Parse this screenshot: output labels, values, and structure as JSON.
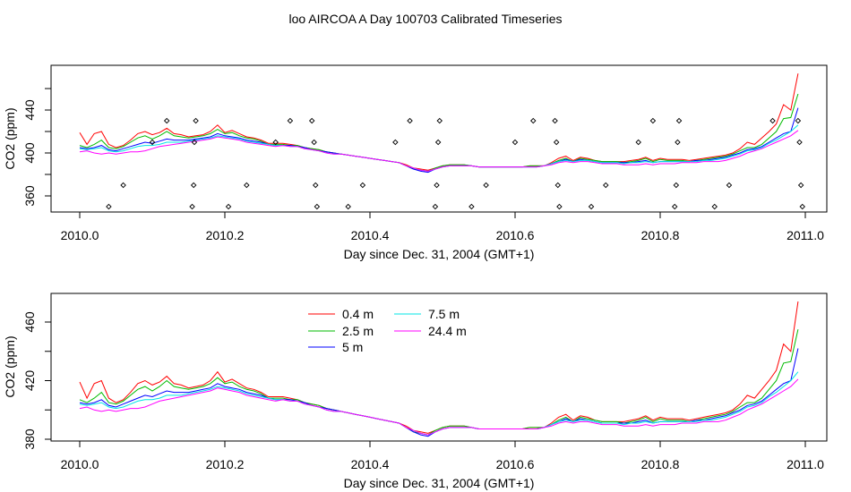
{
  "chart_data": [
    {
      "type": "line",
      "title": "loo AIRCOA A  Day 100703  Calibrated Timeseries",
      "xlabel": "Day since Dec. 31, 2004 (GMT+1)",
      "ylabel": "CO2 (ppm)",
      "xlim": [
        2010.0,
        2011.0
      ],
      "ylim": [
        345,
        480
      ],
      "xticks": [
        "2010.0",
        "2010.2",
        "2010.4",
        "2010.6",
        "2010.8",
        "2011.0"
      ],
      "yticks": [
        "360",
        "400",
        "440"
      ],
      "grid": false,
      "legend": "none",
      "x": [
        2010.0,
        2010.01,
        2010.02,
        2010.03,
        2010.04,
        2010.05,
        2010.06,
        2010.07,
        2010.08,
        2010.09,
        2010.1,
        2010.11,
        2010.12,
        2010.13,
        2010.14,
        2010.15,
        2010.16,
        2010.17,
        2010.18,
        2010.19,
        2010.2,
        2010.21,
        2010.22,
        2010.23,
        2010.24,
        2010.25,
        2010.26,
        2010.27,
        2010.28,
        2010.29,
        2010.3,
        2010.31,
        2010.32,
        2010.33,
        2010.34,
        2010.35,
        2010.36,
        2010.37,
        2010.38,
        2010.39,
        2010.4,
        2010.41,
        2010.42,
        2010.43,
        2010.44,
        2010.45,
        2010.46,
        2010.47,
        2010.48,
        2010.49,
        2010.5,
        2010.51,
        2010.52,
        2010.53,
        2010.54,
        2010.55,
        2010.56,
        2010.57,
        2010.58,
        2010.59,
        2010.6,
        2010.61,
        2010.62,
        2010.63,
        2010.64,
        2010.65,
        2010.66,
        2010.67,
        2010.68,
        2010.69,
        2010.7,
        2010.71,
        2010.72,
        2010.73,
        2010.74,
        2010.75,
        2010.76,
        2010.77,
        2010.78,
        2010.79,
        2010.8,
        2010.81,
        2010.82,
        2010.83,
        2010.84,
        2010.85,
        2010.86,
        2010.87,
        2010.88,
        2010.89,
        2010.9,
        2010.91,
        2010.92,
        2010.93,
        2010.94,
        2010.95,
        2010.96,
        2010.97,
        2010.98,
        2010.99
      ],
      "series": [
        {
          "color": "#ff0000",
          "values": [
            419,
            408,
            418,
            420,
            408,
            405,
            407,
            412,
            418,
            420,
            417,
            419,
            423,
            418,
            417,
            415,
            416,
            417,
            420,
            426,
            419,
            421,
            418,
            415,
            414,
            412,
            409,
            409,
            409,
            408,
            407,
            405,
            404,
            403,
            401,
            400,
            399,
            398,
            397,
            396,
            395,
            394,
            393,
            392,
            391,
            389,
            386,
            385,
            384,
            386,
            388,
            389,
            389,
            389,
            388,
            387,
            387,
            387,
            387,
            387,
            387,
            387,
            388,
            388,
            388,
            391,
            395,
            397,
            393,
            396,
            395,
            393,
            392,
            392,
            392,
            392,
            393,
            394,
            396,
            393,
            395,
            394,
            394,
            394,
            393,
            394,
            395,
            396,
            397,
            398,
            400,
            404,
            410,
            408,
            414,
            420,
            427,
            445,
            440,
            474
          ]
        },
        {
          "color": "#00bb00",
          "values": [
            407,
            405,
            408,
            412,
            405,
            404,
            406,
            410,
            414,
            416,
            413,
            416,
            420,
            416,
            415,
            414,
            415,
            416,
            418,
            422,
            418,
            419,
            416,
            414,
            413,
            411,
            408,
            408,
            408,
            407,
            407,
            405,
            404,
            403,
            401,
            400,
            399,
            398,
            397,
            396,
            395,
            394,
            393,
            392,
            391,
            388,
            385,
            384,
            383,
            386,
            388,
            389,
            389,
            389,
            388,
            387,
            387,
            387,
            387,
            387,
            387,
            387,
            388,
            388,
            388,
            390,
            393,
            395,
            392,
            395,
            394,
            393,
            392,
            392,
            392,
            391,
            392,
            393,
            395,
            392,
            394,
            393,
            393,
            393,
            392,
            393,
            394,
            395,
            396,
            397,
            399,
            402,
            405,
            405,
            408,
            414,
            420,
            432,
            433,
            455
          ]
        },
        {
          "color": "#0000ff",
          "values": [
            405,
            404,
            405,
            407,
            403,
            402,
            404,
            406,
            408,
            410,
            409,
            411,
            413,
            412,
            412,
            412,
            413,
            414,
            415,
            418,
            416,
            415,
            414,
            412,
            411,
            410,
            408,
            407,
            407,
            407,
            406,
            405,
            403,
            402,
            401,
            400,
            399,
            398,
            397,
            396,
            395,
            394,
            393,
            392,
            391,
            388,
            385,
            383,
            382,
            385,
            387,
            388,
            388,
            388,
            388,
            387,
            387,
            387,
            387,
            387,
            387,
            387,
            387,
            387,
            388,
            390,
            392,
            394,
            392,
            394,
            393,
            392,
            391,
            391,
            391,
            391,
            391,
            392,
            393,
            391,
            392,
            392,
            392,
            392,
            392,
            393,
            393,
            394,
            395,
            396,
            398,
            400,
            403,
            404,
            406,
            410,
            414,
            418,
            420,
            442
          ]
        },
        {
          "color": "#00e5e5",
          "values": [
            404,
            403,
            404,
            405,
            402,
            401,
            402,
            404,
            406,
            407,
            407,
            408,
            410,
            410,
            410,
            411,
            412,
            413,
            414,
            416,
            415,
            414,
            413,
            411,
            410,
            409,
            408,
            407,
            407,
            406,
            406,
            404,
            403,
            402,
            400,
            399,
            399,
            398,
            397,
            396,
            395,
            394,
            393,
            392,
            391,
            388,
            386,
            384,
            383,
            385,
            387,
            388,
            388,
            388,
            388,
            387,
            387,
            387,
            387,
            387,
            387,
            387,
            387,
            387,
            388,
            390,
            392,
            393,
            392,
            393,
            393,
            392,
            391,
            391,
            391,
            390,
            391,
            391,
            392,
            391,
            392,
            392,
            392,
            392,
            392,
            392,
            393,
            393,
            394,
            395,
            397,
            399,
            402,
            403,
            405,
            409,
            412,
            416,
            420,
            426
          ]
        },
        {
          "color": "#ff00ff",
          "values": [
            401,
            402,
            400,
            399,
            400,
            399,
            400,
            401,
            401,
            402,
            404,
            406,
            407,
            408,
            409,
            410,
            411,
            412,
            413,
            415,
            414,
            413,
            412,
            410,
            409,
            408,
            407,
            406,
            407,
            406,
            406,
            404,
            403,
            402,
            400,
            399,
            399,
            398,
            397,
            396,
            395,
            394,
            393,
            392,
            391,
            388,
            386,
            384,
            383,
            385,
            387,
            388,
            388,
            388,
            388,
            387,
            387,
            387,
            387,
            387,
            387,
            387,
            387,
            387,
            388,
            389,
            391,
            392,
            391,
            392,
            392,
            391,
            390,
            390,
            390,
            389,
            389,
            389,
            390,
            389,
            390,
            390,
            390,
            391,
            391,
            391,
            392,
            392,
            392,
            393,
            395,
            397,
            400,
            402,
            404,
            407,
            410,
            413,
            416,
            421
          ]
        }
      ],
      "points": [
        {
          "x": 2010.04,
          "y": 350
        },
        {
          "x": 2010.06,
          "y": 370
        },
        {
          "x": 2010.1,
          "y": 410
        },
        {
          "x": 2010.12,
          "y": 430
        },
        {
          "x": 2010.155,
          "y": 350
        },
        {
          "x": 2010.157,
          "y": 370
        },
        {
          "x": 2010.158,
          "y": 410
        },
        {
          "x": 2010.16,
          "y": 430
        },
        {
          "x": 2010.205,
          "y": 350
        },
        {
          "x": 2010.23,
          "y": 370
        },
        {
          "x": 2010.27,
          "y": 410
        },
        {
          "x": 2010.29,
          "y": 430
        },
        {
          "x": 2010.32,
          "y": 430
        },
        {
          "x": 2010.323,
          "y": 410
        },
        {
          "x": 2010.325,
          "y": 370
        },
        {
          "x": 2010.327,
          "y": 350
        },
        {
          "x": 2010.37,
          "y": 350
        },
        {
          "x": 2010.39,
          "y": 370
        },
        {
          "x": 2010.435,
          "y": 410
        },
        {
          "x": 2010.455,
          "y": 430
        },
        {
          "x": 2010.49,
          "y": 350
        },
        {
          "x": 2010.492,
          "y": 370
        },
        {
          "x": 2010.494,
          "y": 410
        },
        {
          "x": 2010.496,
          "y": 430
        },
        {
          "x": 2010.54,
          "y": 350
        },
        {
          "x": 2010.56,
          "y": 370
        },
        {
          "x": 2010.6,
          "y": 410
        },
        {
          "x": 2010.625,
          "y": 430
        },
        {
          "x": 2010.655,
          "y": 430
        },
        {
          "x": 2010.657,
          "y": 410
        },
        {
          "x": 2010.659,
          "y": 370
        },
        {
          "x": 2010.661,
          "y": 350
        },
        {
          "x": 2010.705,
          "y": 350
        },
        {
          "x": 2010.725,
          "y": 370
        },
        {
          "x": 2010.77,
          "y": 410
        },
        {
          "x": 2010.79,
          "y": 430
        },
        {
          "x": 2010.82,
          "y": 350
        },
        {
          "x": 2010.822,
          "y": 370
        },
        {
          "x": 2010.824,
          "y": 410
        },
        {
          "x": 2010.826,
          "y": 430
        },
        {
          "x": 2010.875,
          "y": 350
        },
        {
          "x": 2010.895,
          "y": 370
        },
        {
          "x": 2010.955,
          "y": 430
        },
        {
          "x": 2010.99,
          "y": 430
        },
        {
          "x": 2010.992,
          "y": 410
        },
        {
          "x": 2010.994,
          "y": 370
        },
        {
          "x": 2010.996,
          "y": 350
        }
      ]
    },
    {
      "type": "line",
      "title": "",
      "xlabel": "Day since Dec. 31, 2004 (GMT+1)",
      "ylabel": "CO2 (ppm)",
      "xlim": [
        2010.0,
        2011.0
      ],
      "ylim": [
        378,
        480
      ],
      "xticks": [
        "2010.0",
        "2010.2",
        "2010.4",
        "2010.6",
        "2010.8",
        "2011.0"
      ],
      "yticks": [
        "380",
        "420",
        "460"
      ],
      "grid": false,
      "legend": "top-left",
      "series_names": [
        "0.4 m",
        "2.5 m",
        "5 m",
        "7.5 m",
        "24.4 m"
      ],
      "series_colors": [
        "#ff0000",
        "#00bb00",
        "#0000ff",
        "#00e5e5",
        "#ff00ff"
      ]
    }
  ]
}
